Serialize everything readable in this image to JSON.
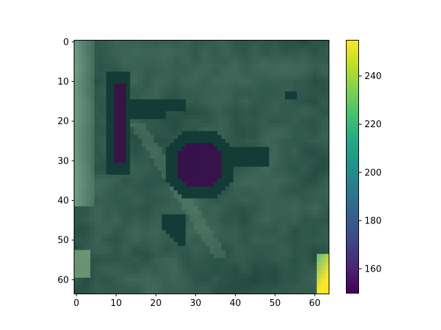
{
  "chart_data": {
    "type": "heatmap",
    "title": "",
    "xlabel": "",
    "ylabel": "",
    "image_size": [
      64,
      64
    ],
    "x_ticks": [
      0,
      10,
      20,
      30,
      40,
      50,
      60
    ],
    "y_ticks": [
      0,
      10,
      20,
      30,
      40,
      50,
      60
    ],
    "x_tick_labels": [
      "0",
      "10",
      "20",
      "30",
      "40",
      "50",
      "60"
    ],
    "y_tick_labels": [
      "0",
      "10",
      "20",
      "30",
      "40",
      "50",
      "60"
    ],
    "colorbar": {
      "colormap": "viridis",
      "min": 150,
      "max": 255,
      "ticks": [
        160,
        180,
        200,
        220,
        240
      ],
      "tick_labels": [
        "160",
        "180",
        "200",
        "220",
        "240"
      ]
    },
    "regions": [
      {
        "name": "dark blob",
        "center": [
          31,
          31
        ],
        "value": 153
      },
      {
        "name": "dark streak",
        "x_range": [
          9,
          13
        ],
        "y_range": [
          10,
          33
        ],
        "value": 153
      },
      {
        "name": "bright corner",
        "x_range": [
          61,
          63
        ],
        "y_range": [
          55,
          63
        ],
        "value": 250
      },
      {
        "name": "bright left edge",
        "x_range": [
          0,
          4
        ],
        "y_range": [
          0,
          40
        ],
        "value": 215
      }
    ],
    "colors": {
      "background_tissue": "#2d5a4f",
      "mask_dark": "#163f3a",
      "lesion_core": "#3b1a4e",
      "bright_edge": "#fde725"
    }
  }
}
